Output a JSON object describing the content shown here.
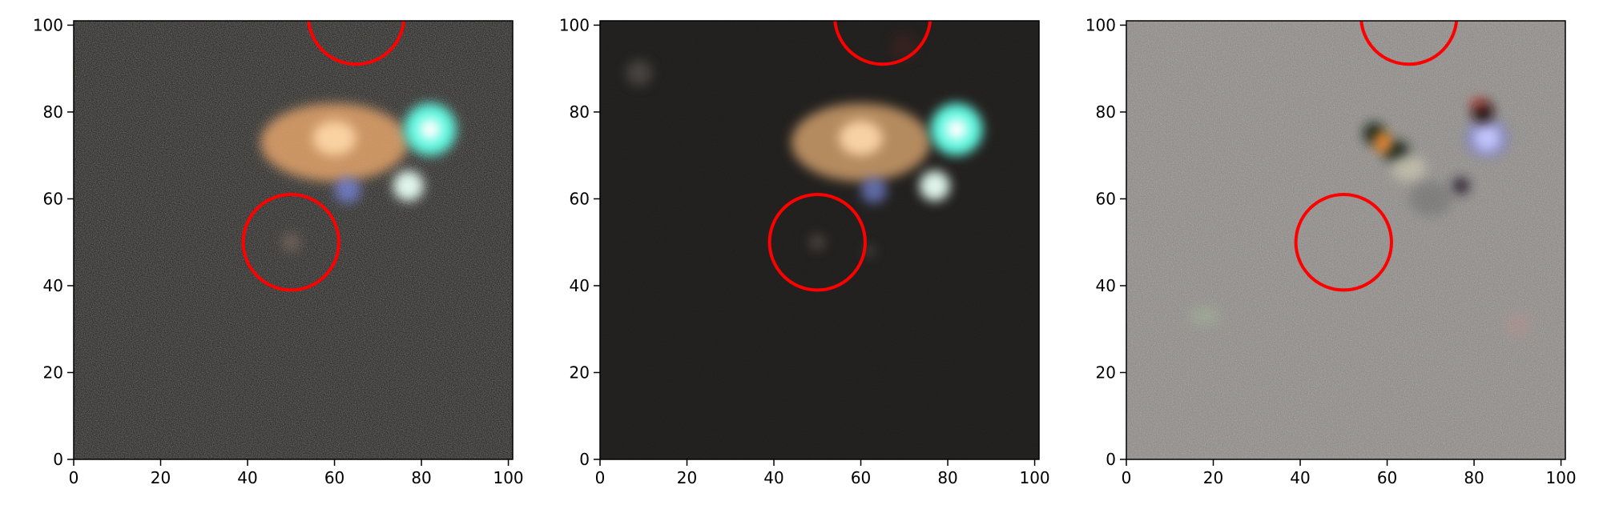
{
  "figure": {
    "panels": [
      {
        "name": "data",
        "background": "#1c1a17",
        "noise_opacity": 0.55,
        "residual": false,
        "circles": [
          {
            "label": "target",
            "cx": 50,
            "cy": 50,
            "r": 11,
            "color": "#ff0000"
          },
          {
            "label": "neighbor",
            "cx": 65,
            "cy": 102,
            "r": 11,
            "color": "#ff0000"
          }
        ],
        "blobs": [
          {
            "label": "extended-galaxy",
            "cx": 60,
            "cy": 73,
            "rx": 17,
            "ry": 9,
            "color": "#e2a36a",
            "opacity": 0.85
          },
          {
            "label": "galaxy-core",
            "cx": 60,
            "cy": 74,
            "rx": 5,
            "ry": 4,
            "color": "#ffd8a8",
            "opacity": 0.9
          },
          {
            "label": "bright-star",
            "cx": 82,
            "cy": 76,
            "rx": 6,
            "ry": 6,
            "color": "#5ff7df",
            "opacity": 1.0
          },
          {
            "label": "star-core",
            "cx": 82,
            "cy": 76,
            "rx": 2.5,
            "ry": 2.5,
            "color": "#ffffff",
            "opacity": 1.0
          },
          {
            "label": "white-star",
            "cx": 77,
            "cy": 63,
            "rx": 3.5,
            "ry": 3.5,
            "color": "#e8fff4",
            "opacity": 0.95
          },
          {
            "label": "blue-source",
            "cx": 63,
            "cy": 62,
            "rx": 3,
            "ry": 3,
            "color": "#7d8df0",
            "opacity": 0.7
          },
          {
            "label": "faint-target",
            "cx": 50,
            "cy": 50,
            "rx": 2.2,
            "ry": 2.2,
            "color": "#9a7f75",
            "opacity": 0.45
          }
        ]
      },
      {
        "name": "model",
        "background": "#1f1d1b",
        "noise_opacity": 0.05,
        "residual": false,
        "circles": [
          {
            "label": "target",
            "cx": 50,
            "cy": 50,
            "r": 11,
            "color": "#ff0000"
          },
          {
            "label": "neighbor",
            "cx": 65,
            "cy": 102,
            "r": 11,
            "color": "#ff0000"
          }
        ],
        "blobs": [
          {
            "label": "extended-galaxy",
            "cx": 60,
            "cy": 73,
            "rx": 16,
            "ry": 9,
            "color": "#d9a56f",
            "opacity": 0.8
          },
          {
            "label": "galaxy-core",
            "cx": 60,
            "cy": 74,
            "rx": 5,
            "ry": 4,
            "color": "#ffd9ab",
            "opacity": 0.9
          },
          {
            "label": "bright-star",
            "cx": 82,
            "cy": 76,
            "rx": 6,
            "ry": 6,
            "color": "#5ff7df",
            "opacity": 1.0
          },
          {
            "label": "star-core",
            "cx": 82,
            "cy": 76,
            "rx": 2.5,
            "ry": 2.5,
            "color": "#ffffff",
            "opacity": 1.0
          },
          {
            "label": "white-star",
            "cx": 77,
            "cy": 63,
            "rx": 3.5,
            "ry": 3.5,
            "color": "#e8fff4",
            "opacity": 0.95
          },
          {
            "label": "blue-source",
            "cx": 63,
            "cy": 62,
            "rx": 3,
            "ry": 3,
            "color": "#8092ee",
            "opacity": 0.65
          },
          {
            "label": "faint-blob",
            "cx": 9,
            "cy": 89,
            "rx": 3,
            "ry": 3,
            "color": "#6a6560",
            "opacity": 0.5
          },
          {
            "label": "faint-target",
            "cx": 50,
            "cy": 50,
            "rx": 1.8,
            "ry": 1.8,
            "color": "#77675f",
            "opacity": 0.5
          },
          {
            "label": "faint-spot",
            "cx": 62,
            "cy": 48,
            "rx": 1.3,
            "ry": 1.3,
            "color": "#6d625e",
            "opacity": 0.5
          },
          {
            "label": "faint-red-blob",
            "cx": 70,
            "cy": 95,
            "rx": 3,
            "ry": 3,
            "color": "#5a2020",
            "opacity": 0.35
          }
        ]
      },
      {
        "name": "residual",
        "background": "#8a8682",
        "noise_opacity": 0.6,
        "residual": true,
        "circles": [
          {
            "label": "target",
            "cx": 50,
            "cy": 50,
            "r": 11,
            "color": "#ff0000"
          },
          {
            "label": "neighbor",
            "cx": 65,
            "cy": 102,
            "r": 11,
            "color": "#ff0000"
          }
        ],
        "blobs": [
          {
            "label": "dark-residual",
            "cx": 57,
            "cy": 75,
            "rx": 2.5,
            "ry": 2.5,
            "color": "#0e1a10",
            "opacity": 0.9
          },
          {
            "label": "dark-residual-2",
            "cx": 62,
            "cy": 71,
            "rx": 3,
            "ry": 2.5,
            "color": "#162016",
            "opacity": 0.9
          },
          {
            "label": "orange-residual",
            "cx": 59,
            "cy": 73,
            "rx": 2,
            "ry": 2.5,
            "color": "#ff8a1e",
            "opacity": 0.8
          },
          {
            "label": "light-residual",
            "cx": 65,
            "cy": 67,
            "rx": 4,
            "ry": 3,
            "color": "#d6d2b8",
            "opacity": 0.6
          },
          {
            "label": "white-residual",
            "cx": 83,
            "cy": 74,
            "rx": 3,
            "ry": 3,
            "color": "#ffffff",
            "opacity": 0.95
          },
          {
            "label": "blue-halo",
            "cx": 83,
            "cy": 74,
            "rx": 5,
            "ry": 4.5,
            "color": "#5a63ff",
            "opacity": 0.35
          },
          {
            "label": "dark-spot",
            "cx": 82,
            "cy": 80,
            "rx": 2.5,
            "ry": 2.5,
            "color": "#20100a",
            "opacity": 0.95
          },
          {
            "label": "red-edge",
            "cx": 81,
            "cy": 82,
            "rx": 2,
            "ry": 1.2,
            "color": "#ff3020",
            "opacity": 0.5
          },
          {
            "label": "dark-spot-2",
            "cx": 77,
            "cy": 63,
            "rx": 2,
            "ry": 2,
            "color": "#2a2030",
            "opacity": 0.9
          },
          {
            "label": "faint-dark",
            "cx": 70,
            "cy": 60,
            "rx": 5,
            "ry": 4,
            "color": "#55575a",
            "opacity": 0.35
          },
          {
            "label": "pinkish-spot",
            "cx": 90,
            "cy": 31,
            "rx": 3,
            "ry": 3,
            "color": "#c09090",
            "opacity": 0.35
          },
          {
            "label": "greenish-spot",
            "cx": 18,
            "cy": 33,
            "rx": 3.5,
            "ry": 2,
            "color": "#a8c89a",
            "opacity": 0.35
          }
        ]
      }
    ],
    "axis": {
      "xlim": [
        0,
        101
      ],
      "ylim": [
        0,
        101
      ],
      "xticks": [
        "0",
        "20",
        "40",
        "60",
        "80",
        "100"
      ],
      "yticks": [
        "0",
        "20",
        "40",
        "60",
        "80",
        "100"
      ],
      "tick_values": [
        0,
        20,
        40,
        60,
        80,
        100
      ]
    }
  }
}
